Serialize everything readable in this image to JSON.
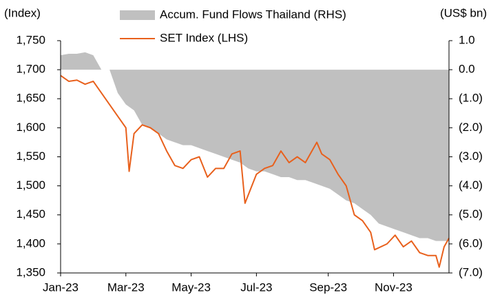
{
  "chart_data": {
    "type": "area-line",
    "y_label": "(Index)",
    "y2_label": "(US$ bn)",
    "xlim": [
      0,
      11.9
    ],
    "xticks": [
      {
        "value": 0,
        "label": "Jan-23"
      },
      {
        "value": 2,
        "label": "Mar-23"
      },
      {
        "value": 4,
        "label": "May-23"
      },
      {
        "value": 6,
        "label": "Jul-23"
      },
      {
        "value": 8.2,
        "label": "Sep-23"
      },
      {
        "value": 10.2,
        "label": "Nov-23"
      }
    ],
    "ylim": [
      1350,
      1750
    ],
    "yticks": [
      {
        "value": 1350,
        "label": "1,350"
      },
      {
        "value": 1400,
        "label": "1,400"
      },
      {
        "value": 1450,
        "label": "1,450"
      },
      {
        "value": 1500,
        "label": "1,500"
      },
      {
        "value": 1550,
        "label": "1,550"
      },
      {
        "value": 1600,
        "label": "1,600"
      },
      {
        "value": 1650,
        "label": "1,650"
      },
      {
        "value": 1700,
        "label": "1,700"
      },
      {
        "value": 1750,
        "label": "1,750"
      }
    ],
    "y2lim": [
      -7,
      1
    ],
    "y2ticks": [
      {
        "value": 1,
        "label": "1.0"
      },
      {
        "value": 0,
        "label": "0.0"
      },
      {
        "value": -1,
        "label": "(1.0)"
      },
      {
        "value": -2,
        "label": "(2.0)"
      },
      {
        "value": -3,
        "label": "(3.0)"
      },
      {
        "value": -4,
        "label": "(4.0)"
      },
      {
        "value": -5,
        "label": "(5.0)"
      },
      {
        "value": -6,
        "label": "(6.0)"
      },
      {
        "value": -7,
        "label": "(7.0)"
      }
    ],
    "series": [
      {
        "name": "Accum. Fund Flows Thailand (RHS)",
        "kind": "area",
        "axis": "y2",
        "color": "#c0c0c0",
        "x": [
          0,
          0.25,
          0.5,
          0.75,
          1,
          1.25,
          1.5,
          1.75,
          2,
          2.25,
          2.5,
          2.75,
          3,
          3.25,
          3.5,
          3.75,
          4,
          4.25,
          4.5,
          4.75,
          5,
          5.25,
          5.5,
          5.75,
          6,
          6.25,
          6.5,
          6.75,
          7,
          7.25,
          7.5,
          7.75,
          8,
          8.25,
          8.5,
          8.75,
          9,
          9.25,
          9.5,
          9.75,
          10,
          10.25,
          10.5,
          10.75,
          11,
          11.25,
          11.5,
          11.75,
          11.9
        ],
        "values": [
          0.5,
          0.55,
          0.55,
          0.6,
          0.5,
          0,
          0,
          -0.8,
          -1.2,
          -1.4,
          -1.9,
          -2.0,
          -2.2,
          -2.4,
          -2.5,
          -2.6,
          -2.6,
          -2.7,
          -2.8,
          -2.9,
          -3.0,
          -3.1,
          -3.2,
          -3.4,
          -3.5,
          -3.5,
          -3.6,
          -3.7,
          -3.7,
          -3.8,
          -3.8,
          -3.9,
          -4.0,
          -4.1,
          -4.3,
          -4.5,
          -4.6,
          -4.8,
          -5.0,
          -5.3,
          -5.4,
          -5.5,
          -5.6,
          -5.7,
          -5.8,
          -5.8,
          -5.9,
          -5.9,
          -5.9
        ]
      },
      {
        "name": "SET Index (LHS)",
        "kind": "line",
        "axis": "y",
        "color": "#e8601c",
        "x": [
          0,
          0.25,
          0.5,
          0.75,
          1,
          1.25,
          1.5,
          1.75,
          2,
          2.1,
          2.25,
          2.5,
          2.75,
          3,
          3.25,
          3.5,
          3.75,
          4,
          4.25,
          4.5,
          4.75,
          5,
          5.25,
          5.5,
          5.65,
          6,
          6.25,
          6.5,
          6.75,
          7,
          7.25,
          7.5,
          7.75,
          7.85,
          8,
          8.25,
          8.5,
          8.75,
          9,
          9.25,
          9.5,
          9.62,
          10,
          10.25,
          10.5,
          10.75,
          11,
          11.25,
          11.5,
          11.6,
          11.75,
          11.9
        ],
        "values": [
          1690,
          1680,
          1682,
          1675,
          1680,
          1660,
          1640,
          1620,
          1600,
          1525,
          1590,
          1605,
          1600,
          1590,
          1560,
          1535,
          1530,
          1545,
          1550,
          1515,
          1530,
          1530,
          1555,
          1560,
          1470,
          1520,
          1530,
          1535,
          1560,
          1540,
          1550,
          1540,
          1565,
          1575,
          1555,
          1545,
          1520,
          1500,
          1450,
          1440,
          1420,
          1390,
          1400,
          1415,
          1395,
          1405,
          1385,
          1380,
          1380,
          1360,
          1395,
          1410
        ]
      }
    ]
  }
}
